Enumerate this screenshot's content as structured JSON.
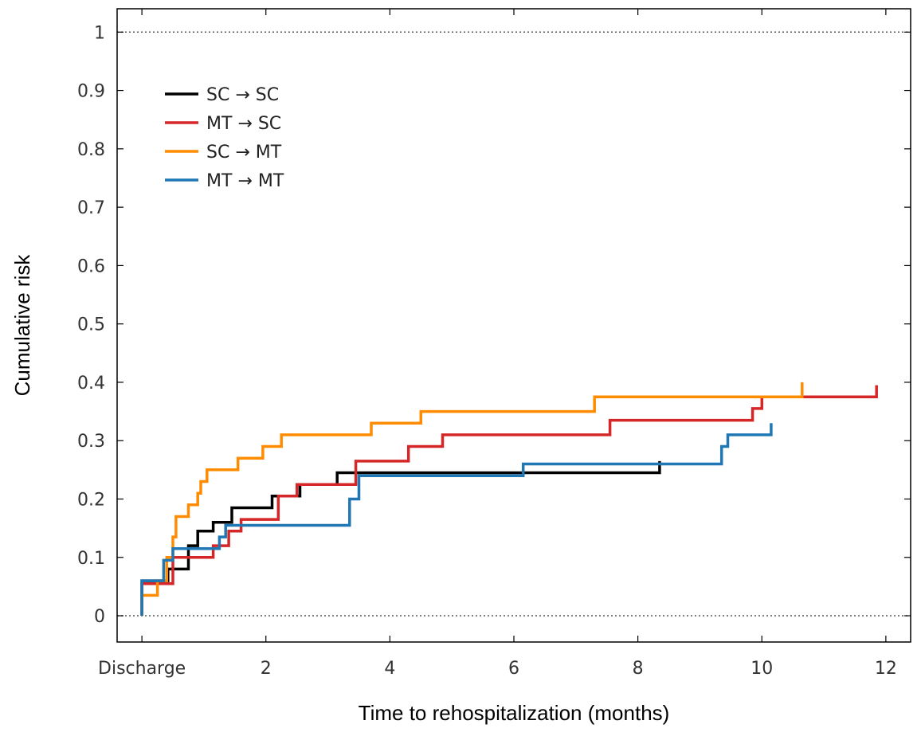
{
  "chart_data": {
    "type": "line",
    "step": true,
    "xlabel": "Time to rehospitalization (months)",
    "ylabel": "Cumulative risk",
    "xlim": [
      -0.4,
      12.4
    ],
    "ylim": [
      -0.045,
      1.04
    ],
    "x_ticks": [
      {
        "value": 0,
        "label": "Discharge"
      },
      {
        "value": 2,
        "label": "2"
      },
      {
        "value": 4,
        "label": "4"
      },
      {
        "value": 6,
        "label": "6"
      },
      {
        "value": 8,
        "label": "8"
      },
      {
        "value": 10,
        "label": "10"
      },
      {
        "value": 12,
        "label": "12"
      }
    ],
    "y_ticks": [
      {
        "value": 0,
        "label": "0"
      },
      {
        "value": 0.1,
        "label": "0.1"
      },
      {
        "value": 0.2,
        "label": "0.2"
      },
      {
        "value": 0.3,
        "label": "0.3"
      },
      {
        "value": 0.4,
        "label": "0.4"
      },
      {
        "value": 0.5,
        "label": "0.5"
      },
      {
        "value": 0.6,
        "label": "0.6"
      },
      {
        "value": 0.7,
        "label": "0.7"
      },
      {
        "value": 0.8,
        "label": "0.8"
      },
      {
        "value": 0.9,
        "label": "0.9"
      },
      {
        "value": 1,
        "label": "1"
      }
    ],
    "reference_lines": [
      0,
      1
    ],
    "legend_position": "top-left",
    "series": [
      {
        "name": "SC → SC",
        "color": "#000000",
        "points": [
          [
            0,
            0
          ],
          [
            0,
            0.06
          ],
          [
            0.42,
            0.06
          ],
          [
            0.42,
            0.08
          ],
          [
            0.75,
            0.08
          ],
          [
            0.75,
            0.12
          ],
          [
            0.9,
            0.12
          ],
          [
            0.9,
            0.145
          ],
          [
            1.15,
            0.145
          ],
          [
            1.15,
            0.16
          ],
          [
            1.45,
            0.16
          ],
          [
            1.45,
            0.185
          ],
          [
            2.1,
            0.185
          ],
          [
            2.1,
            0.205
          ],
          [
            2.55,
            0.205
          ],
          [
            2.55,
            0.225
          ],
          [
            3.15,
            0.225
          ],
          [
            3.15,
            0.245
          ],
          [
            8.35,
            0.245
          ],
          [
            8.35,
            0.265
          ]
        ]
      },
      {
        "name": "MT → SC",
        "color": "#d62728",
        "points": [
          [
            0,
            0
          ],
          [
            0,
            0.055
          ],
          [
            0.5,
            0.055
          ],
          [
            0.5,
            0.1
          ],
          [
            1.15,
            0.1
          ],
          [
            1.15,
            0.12
          ],
          [
            1.4,
            0.12
          ],
          [
            1.4,
            0.145
          ],
          [
            1.6,
            0.145
          ],
          [
            1.6,
            0.165
          ],
          [
            2.2,
            0.165
          ],
          [
            2.2,
            0.205
          ],
          [
            2.5,
            0.205
          ],
          [
            2.5,
            0.225
          ],
          [
            3.45,
            0.225
          ],
          [
            3.45,
            0.265
          ],
          [
            4.3,
            0.265
          ],
          [
            4.3,
            0.29
          ],
          [
            4.85,
            0.29
          ],
          [
            4.85,
            0.31
          ],
          [
            7.55,
            0.31
          ],
          [
            7.55,
            0.335
          ],
          [
            9.85,
            0.335
          ],
          [
            9.85,
            0.355
          ],
          [
            10.0,
            0.355
          ],
          [
            10.0,
            0.375
          ],
          [
            11.85,
            0.375
          ],
          [
            11.85,
            0.395
          ]
        ]
      },
      {
        "name": "SC → MT",
        "color": "#ff8c00",
        "points": [
          [
            0,
            0
          ],
          [
            0,
            0.035
          ],
          [
            0.25,
            0.035
          ],
          [
            0.25,
            0.06
          ],
          [
            0.4,
            0.06
          ],
          [
            0.4,
            0.1
          ],
          [
            0.5,
            0.1
          ],
          [
            0.5,
            0.135
          ],
          [
            0.55,
            0.135
          ],
          [
            0.55,
            0.17
          ],
          [
            0.75,
            0.17
          ],
          [
            0.75,
            0.19
          ],
          [
            0.9,
            0.19
          ],
          [
            0.9,
            0.21
          ],
          [
            0.95,
            0.21
          ],
          [
            0.95,
            0.23
          ],
          [
            1.05,
            0.23
          ],
          [
            1.05,
            0.25
          ],
          [
            1.55,
            0.25
          ],
          [
            1.55,
            0.27
          ],
          [
            1.95,
            0.27
          ],
          [
            1.95,
            0.29
          ],
          [
            2.25,
            0.29
          ],
          [
            2.25,
            0.31
          ],
          [
            3.7,
            0.31
          ],
          [
            3.7,
            0.33
          ],
          [
            4.5,
            0.33
          ],
          [
            4.5,
            0.35
          ],
          [
            7.3,
            0.35
          ],
          [
            7.3,
            0.375
          ],
          [
            10.65,
            0.375
          ],
          [
            10.65,
            0.4
          ]
        ]
      },
      {
        "name": "MT → MT",
        "color": "#1f77b4",
        "points": [
          [
            0,
            0
          ],
          [
            0,
            0.06
          ],
          [
            0.35,
            0.06
          ],
          [
            0.35,
            0.095
          ],
          [
            0.5,
            0.095
          ],
          [
            0.5,
            0.115
          ],
          [
            1.25,
            0.115
          ],
          [
            1.25,
            0.135
          ],
          [
            1.35,
            0.135
          ],
          [
            1.35,
            0.155
          ],
          [
            3.35,
            0.155
          ],
          [
            3.35,
            0.2
          ],
          [
            3.5,
            0.2
          ],
          [
            3.5,
            0.24
          ],
          [
            6.15,
            0.24
          ],
          [
            6.15,
            0.26
          ],
          [
            9.35,
            0.26
          ],
          [
            9.35,
            0.29
          ],
          [
            9.45,
            0.29
          ],
          [
            9.45,
            0.31
          ],
          [
            10.15,
            0.31
          ],
          [
            10.15,
            0.33
          ]
        ]
      }
    ]
  }
}
